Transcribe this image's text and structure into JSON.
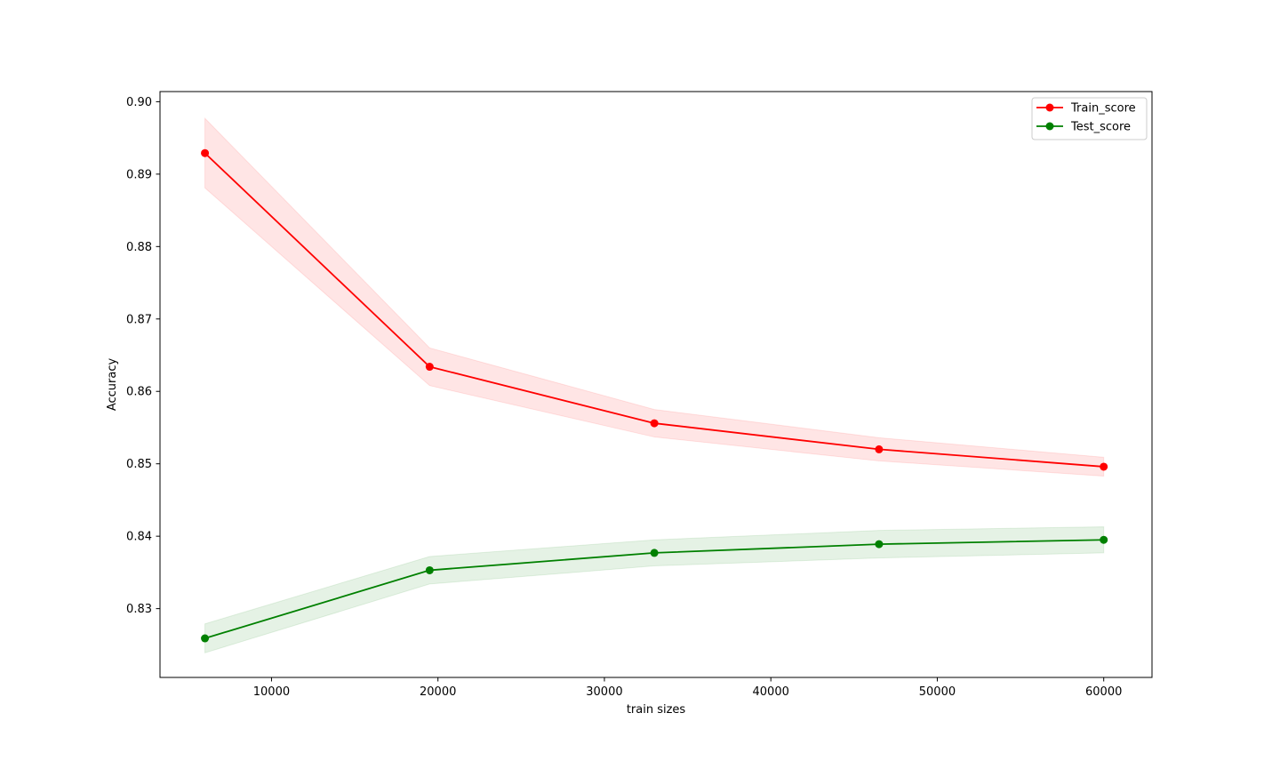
{
  "chart_data": {
    "type": "line",
    "title": "",
    "xlabel": "train sizes",
    "ylabel": "Accuracy",
    "xlim": [
      3300,
      62900
    ],
    "ylim": [
      0.8205,
      0.9014
    ],
    "x_ticks": [
      10000,
      20000,
      30000,
      40000,
      50000,
      60000
    ],
    "x_tick_labels": [
      "10000",
      "20000",
      "30000",
      "40000",
      "50000",
      "60000"
    ],
    "y_ticks": [
      0.83,
      0.84,
      0.85,
      0.86,
      0.87,
      0.88,
      0.89,
      0.9
    ],
    "y_tick_labels": [
      "0.83",
      "0.84",
      "0.85",
      "0.86",
      "0.87",
      "0.88",
      "0.89",
      "0.90"
    ],
    "grid": false,
    "legend_position": "top-right",
    "x": [
      6000,
      19500,
      33000,
      46500,
      60000
    ],
    "series": [
      {
        "name": "Train_score",
        "color": "#ff0000",
        "band_color": "#ff0000",
        "marker": "circle",
        "values": [
          0.8929,
          0.8634,
          0.8556,
          0.852,
          0.8496
        ],
        "band_lower": [
          0.8881,
          0.8608,
          0.8537,
          0.8504,
          0.8483
        ],
        "band_upper": [
          0.8977,
          0.866,
          0.8575,
          0.8536,
          0.8509
        ]
      },
      {
        "name": "Test_score",
        "color": "#008000",
        "band_color": "#008000",
        "marker": "circle",
        "values": [
          0.8259,
          0.8353,
          0.8377,
          0.8389,
          0.8395
        ],
        "band_lower": [
          0.8239,
          0.8334,
          0.8359,
          0.837,
          0.8377
        ],
        "band_upper": [
          0.8279,
          0.8372,
          0.8395,
          0.8408,
          0.8413
        ]
      }
    ]
  }
}
